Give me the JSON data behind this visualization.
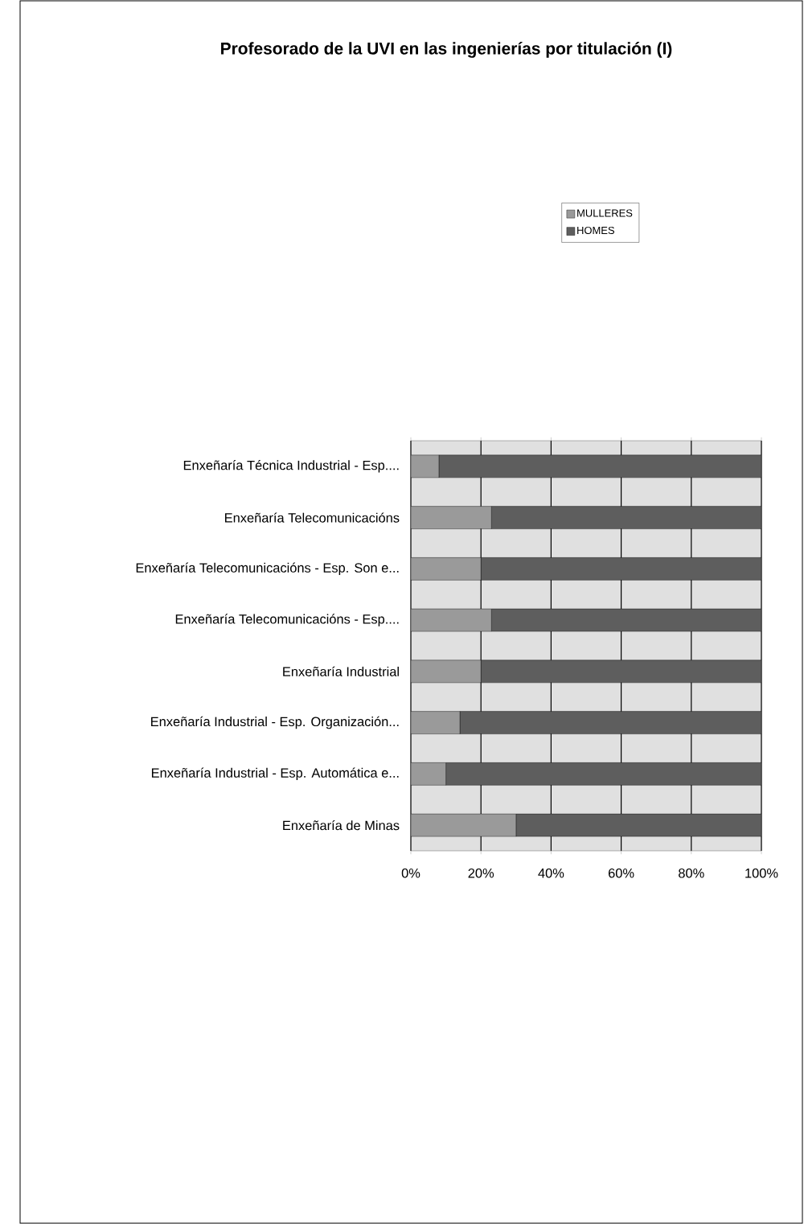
{
  "chart_data": {
    "type": "bar",
    "orientation": "horizontal",
    "stacked": true,
    "title": "Profesorado de la UVI en las ingenierías por titulación (I)",
    "categories": [
      "Enxeñaría Técnica Industrial - Esp....",
      "Enxeñaría Telecomunicacións",
      "Enxeñaría Telecomunicacións - Esp. Son e...",
      "Enxeñaría Telecomunicacións - Esp....",
      "Enxeñaría Industrial",
      "Enxeñaría Industrial - Esp. Organización...",
      "Enxeñaría Industrial - Esp. Automática e...",
      "Enxeñaría de Minas"
    ],
    "series": [
      {
        "name": "MULLERES",
        "color": "#9a9a9a",
        "values": [
          8,
          23,
          20,
          23,
          20,
          14,
          10,
          30
        ]
      },
      {
        "name": "HOMES",
        "color": "#5e5e5e",
        "values": [
          92,
          77,
          80,
          77,
          80,
          86,
          90,
          70
        ]
      }
    ],
    "xlim": [
      0,
      100
    ],
    "xticks": [
      {
        "value": 0,
        "label": "0%"
      },
      {
        "value": 20,
        "label": "20%"
      },
      {
        "value": 40,
        "label": "40%"
      },
      {
        "value": 60,
        "label": "60%"
      },
      {
        "value": 80,
        "label": "80%"
      },
      {
        "value": 100,
        "label": "100%"
      }
    ],
    "grid": "x",
    "legend": "top right"
  }
}
